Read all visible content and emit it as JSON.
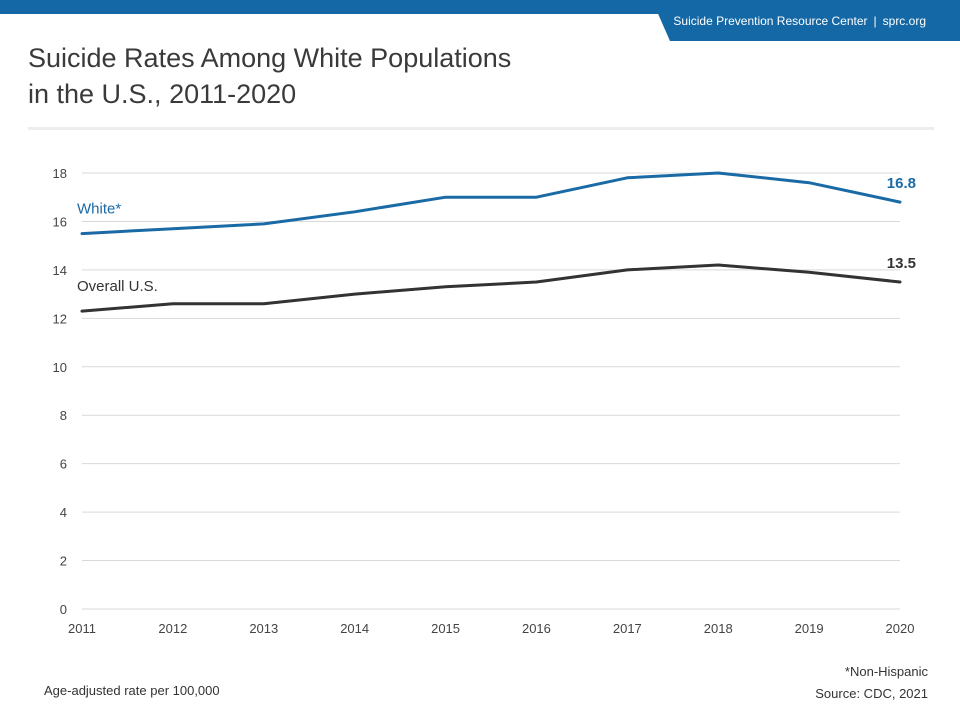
{
  "header": {
    "org_name": "Suicide Prevention Resource Center",
    "separator": "|",
    "site": "sprc.org"
  },
  "title_lines": [
    "Suicide Rates Among White Populations",
    "in the U.S., 2011-2020"
  ],
  "footer": {
    "ylabel_note": "Age-adjusted rate per 100,000",
    "footnote": "*Non-Hispanic",
    "source": "Source: CDC, 2021"
  },
  "colors": {
    "brand": "#1468a5",
    "white_series": "#1a6aa6",
    "overall_series": "#333333",
    "grid": "#d9d9d9"
  },
  "chart_data": {
    "type": "line",
    "title": "Suicide Rates Among White Populations in the U.S., 2011-2020",
    "xlabel": "",
    "ylabel": "Age-adjusted rate per 100,000",
    "x": [
      2011,
      2012,
      2013,
      2014,
      2015,
      2016,
      2017,
      2018,
      2019,
      2020
    ],
    "xticks": [
      "2011",
      "2012",
      "2013",
      "2014",
      "2015",
      "2016",
      "2017",
      "2018",
      "2019",
      "2020"
    ],
    "ylim": [
      0,
      18
    ],
    "yticks": [
      0,
      2,
      4,
      6,
      8,
      10,
      12,
      14,
      16,
      18
    ],
    "grid": true,
    "legend": "inline labels",
    "series": [
      {
        "name": "White*",
        "values": [
          15.5,
          15.7,
          15.9,
          16.4,
          17.0,
          17.0,
          17.8,
          18.0,
          17.6,
          16.8
        ],
        "end_label": "16.8",
        "color": "#1a6aa6"
      },
      {
        "name": "Overall U.S.",
        "values": [
          12.3,
          12.6,
          12.6,
          13.0,
          13.3,
          13.5,
          14.0,
          14.2,
          13.9,
          13.5
        ],
        "end_label": "13.5",
        "color": "#333333"
      }
    ]
  }
}
